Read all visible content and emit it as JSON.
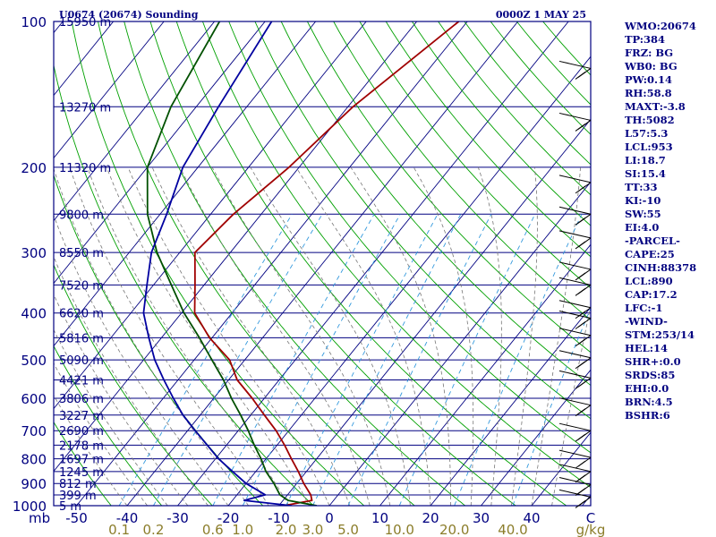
{
  "chart_data": {
    "type": "skew-t",
    "title": "U0674 (20674) Sounding",
    "valid_time": "0000Z  1 MAY 25",
    "pressure_unit_label": "mb",
    "temperature_unit_label": "C",
    "mixing_ratio_unit_label": "g/kg",
    "pressure_ticks": [
      100,
      200,
      300,
      400,
      500,
      600,
      700,
      800,
      900,
      1000
    ],
    "pressure_range": [
      100,
      1000
    ],
    "temperature_ticks": [
      "-50",
      "-40",
      "-30",
      "-20",
      "-10",
      "0",
      "10",
      "20",
      "30",
      "40"
    ],
    "temperature_range": [
      -50,
      50
    ],
    "mixing_ratio_labels": [
      "0.1",
      "0.2",
      "0.6",
      "1.0",
      "2.0",
      "3.0",
      "5.0",
      "10.0",
      "20.0",
      "40.0"
    ],
    "height_labels": [
      {
        "p": 100,
        "label": "15950 m"
      },
      {
        "p": 150,
        "label": "13270 m"
      },
      {
        "p": 200,
        "label": "11320 m"
      },
      {
        "p": 250,
        "label": "9800 m"
      },
      {
        "p": 300,
        "label": "8550 m"
      },
      {
        "p": 350,
        "label": "7520 m"
      },
      {
        "p": 400,
        "label": "6620 m"
      },
      {
        "p": 450,
        "label": "5816 m"
      },
      {
        "p": 500,
        "label": "5090 m"
      },
      {
        "p": 550,
        "label": "4421 m"
      },
      {
        "p": 600,
        "label": "3806 m"
      },
      {
        "p": 650,
        "label": "3227 m"
      },
      {
        "p": 700,
        "label": "2690 m"
      },
      {
        "p": 750,
        "label": "2178 m"
      },
      {
        "p": 800,
        "label": "1697 m"
      },
      {
        "p": 850,
        "label": "1245 m"
      },
      {
        "p": 900,
        "label": "812 m"
      },
      {
        "p": 950,
        "label": "399 m"
      },
      {
        "p": 1000,
        "label": "5 m"
      }
    ],
    "series": [
      {
        "name": "Temperature",
        "p": [
          1000,
          975,
          950,
          900,
          850,
          800,
          750,
          700,
          650,
          600,
          550,
          500,
          450,
          400,
          350,
          300,
          250,
          200,
          150,
          100
        ],
        "t": [
          -9.0,
          -4.3,
          -5.4,
          -8.6,
          -11.6,
          -15.0,
          -18.5,
          -22.5,
          -27.3,
          -32.4,
          -38.3,
          -43.0,
          -50.5,
          -57.4,
          -61.8,
          -67.0,
          -65.5,
          -62.0,
          -59.0,
          -51.7
        ]
      },
      {
        "name": "Parcel",
        "p": [
          1000,
          975,
          950,
          900,
          850,
          800,
          750,
          700,
          650,
          600,
          550,
          500,
          450,
          400,
          350,
          300,
          250,
          200,
          150,
          100
        ],
        "t": [
          -2.5,
          -9.0,
          -11.5,
          -14.5,
          -18.0,
          -21.0,
          -24.5,
          -28.0,
          -32.0,
          -36.5,
          -41.0,
          -46.5,
          -52.5,
          -59.5,
          -66.5,
          -74.5,
          -82.5,
          -90.0,
          -95.0,
          -99.0
        ]
      },
      {
        "name": "Dewpoint",
        "p": [
          1000,
          975,
          950,
          900,
          850,
          800,
          750,
          700,
          650,
          600,
          550,
          500,
          450,
          400,
          350,
          300,
          250,
          200,
          150,
          100
        ],
        "t": [
          -7.5,
          -17.7,
          -14.4,
          -20.0,
          -24.6,
          -29.4,
          -33.8,
          -38.5,
          -43.4,
          -48.0,
          -52.8,
          -57.8,
          -62.5,
          -67.5,
          -71.3,
          -75.6,
          -78.7,
          -83.0,
          -85.6,
          -88.7
        ]
      }
    ],
    "wind_barbs": [
      {
        "p": 125,
        "wind": "barb"
      },
      {
        "p": 160,
        "wind": "barb"
      },
      {
        "p": 215,
        "wind": "barb"
      },
      {
        "p": 250,
        "wind": "barb"
      },
      {
        "p": 280,
        "wind": "barb"
      },
      {
        "p": 325,
        "wind": "barb"
      },
      {
        "p": 350,
        "wind": "barb"
      },
      {
        "p": 390,
        "wind": "barb"
      },
      {
        "p": 410,
        "wind": "barb"
      },
      {
        "p": 445,
        "wind": "barb"
      },
      {
        "p": 495,
        "wind": "barb"
      },
      {
        "p": 545,
        "wind": "barb"
      },
      {
        "p": 620,
        "wind": "barb"
      },
      {
        "p": 700,
        "wind": "barb"
      },
      {
        "p": 795,
        "wind": "barb"
      },
      {
        "p": 850,
        "wind": "barb"
      },
      {
        "p": 905,
        "wind": "barb"
      },
      {
        "p": 960,
        "wind": "barb"
      }
    ],
    "grid": true
  },
  "stats": [
    "WMO:20674",
    "TP:384",
    "FRZ: BG",
    "WB0: BG",
    "PW:0.14",
    "RH:58.8",
    "MAXT:-3.8",
    "TH:5082",
    "L57:5.3",
    "LCL:953",
    "LI:18.7",
    "SI:15.4",
    "TT:33",
    "KI:-10",
    "SW:55",
    "EI:4.0",
    "-PARCEL-",
    "CAPE:25",
    "CINH:88378",
    "LCL:890",
    "CAP:17.2",
    "LFC:-1",
    "-WIND-",
    "STM:253/14",
    "HEL:14",
    "SHR+:0.0",
    "SRDS:85",
    "EHI:0.0",
    "BRN:4.5",
    "BSHR:6"
  ],
  "colors": {
    "background": "#ffffff",
    "frame": "#000080",
    "isobar": "#000080",
    "isotherm": "#000080",
    "dry_adiabat": "#00a000",
    "moist_adiabat": "#777777",
    "mixing_ratio": "#3399dd",
    "temperature": "#a00000",
    "dewpoint": "#0000a0",
    "parcel": "#005000",
    "wind_barb": "#000000",
    "axis_text": "#000080",
    "mixing_ratio_text": "#8b7d2a",
    "stats_text": "#000080"
  }
}
